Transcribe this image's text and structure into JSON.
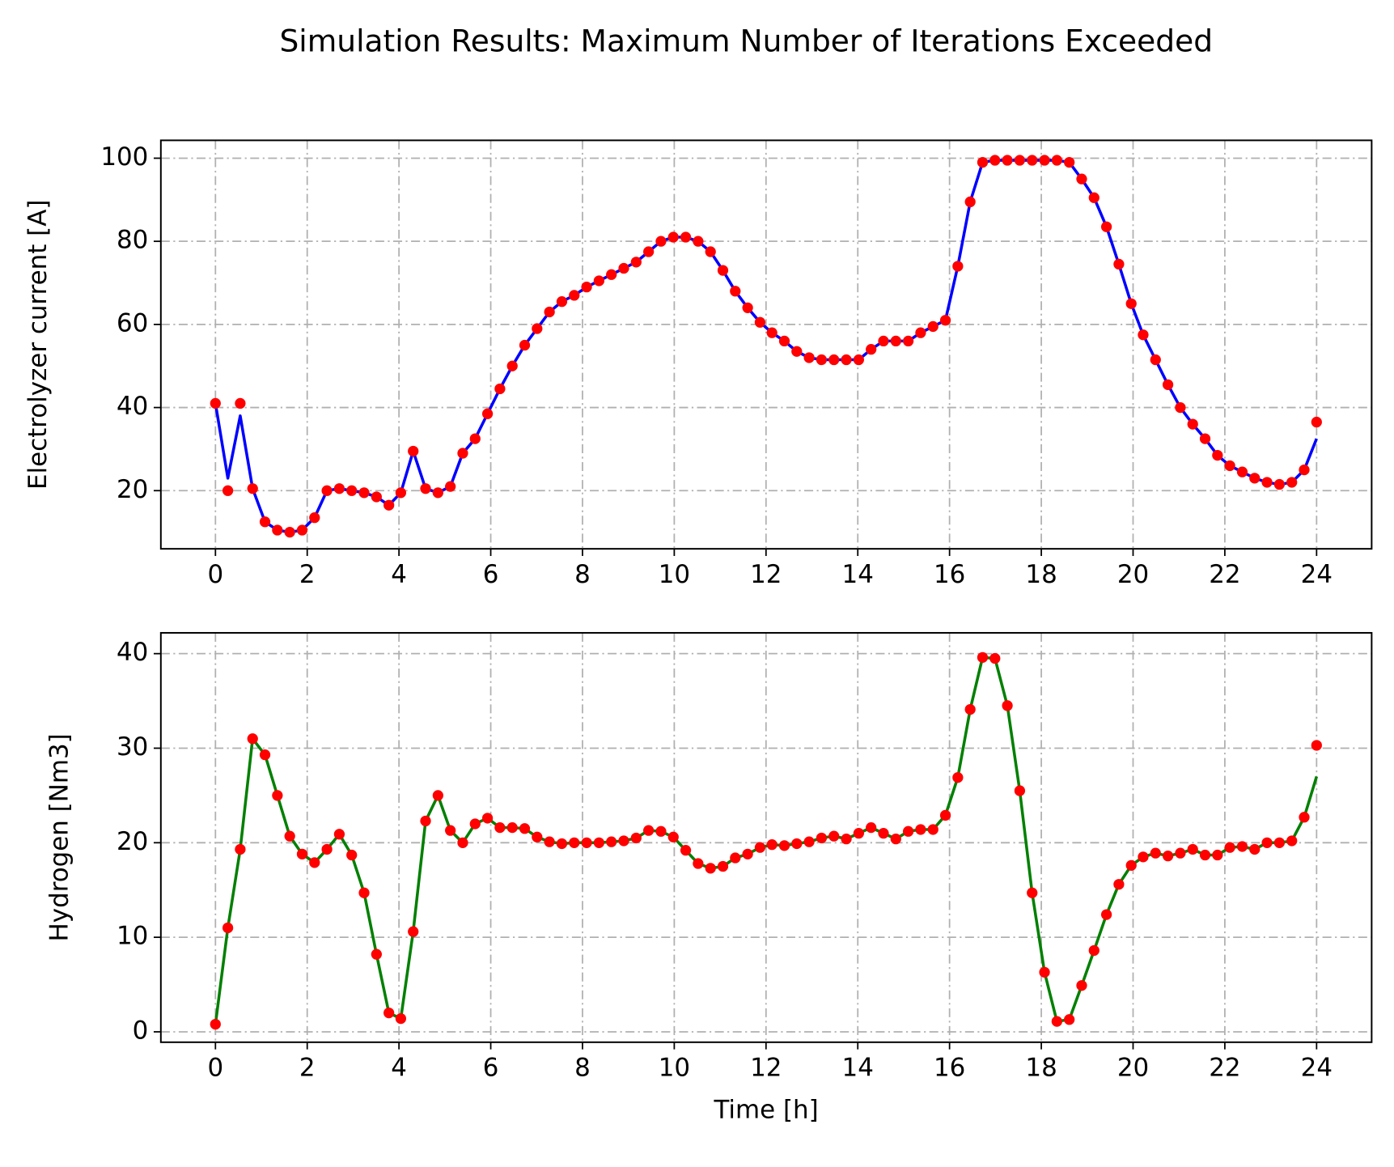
{
  "suptitle": "Simulation Results:  Maximum Number of Iterations Exceeded",
  "chart_data": [
    {
      "type": "line",
      "ylabel": "Electrolyzer current [A]",
      "xlim": [
        -1.19,
        25.2
      ],
      "ylim": [
        6.0,
        104.3
      ],
      "xticks": [
        0,
        2,
        4,
        6,
        8,
        10,
        12,
        14,
        16,
        18,
        20,
        22,
        24
      ],
      "yticks": [
        20,
        40,
        60,
        80,
        100
      ],
      "grid": true,
      "x": [
        0,
        0.27,
        0.54,
        0.81,
        1.08,
        1.35,
        1.62,
        1.89,
        2.16,
        2.43,
        2.7,
        2.97,
        3.24,
        3.51,
        3.78,
        4.04,
        4.31,
        4.58,
        4.85,
        5.12,
        5.39,
        5.66,
        5.93,
        6.2,
        6.47,
        6.74,
        7.01,
        7.28,
        7.55,
        7.82,
        8.09,
        8.36,
        8.63,
        8.9,
        9.17,
        9.44,
        9.71,
        9.98,
        10.25,
        10.52,
        10.79,
        11.06,
        11.33,
        11.6,
        11.87,
        12.13,
        12.4,
        12.67,
        12.94,
        13.21,
        13.48,
        13.75,
        14.02,
        14.29,
        14.56,
        14.83,
        15.1,
        15.37,
        15.64,
        15.91,
        16.18,
        16.45,
        16.72,
        16.99,
        17.26,
        17.53,
        17.8,
        18.07,
        18.34,
        18.61,
        18.88,
        19.15,
        19.42,
        19.69,
        19.96,
        20.22,
        20.49,
        20.76,
        21.03,
        21.3,
        21.57,
        21.84,
        22.11,
        22.38,
        22.65,
        22.92,
        23.19,
        23.46,
        23.73,
        24
      ],
      "series": [
        {
          "style": "line",
          "color": "#0000ff",
          "values": [
            41,
            23,
            38,
            20.5,
            12.5,
            10.5,
            10,
            10.5,
            13.5,
            20,
            20.5,
            20,
            19.5,
            18.5,
            16.5,
            19.5,
            29.5,
            20.5,
            19.5,
            21,
            29,
            32.5,
            38.5,
            44.5,
            50,
            55,
            59,
            63,
            65.5,
            67,
            69,
            70.5,
            72,
            73.5,
            75,
            77.5,
            80,
            81,
            81,
            80,
            77.5,
            73,
            68,
            64,
            60.5,
            58,
            56,
            53.5,
            52,
            51.5,
            51.5,
            51.5,
            51.5,
            54,
            56,
            56,
            56,
            58,
            59.5,
            61,
            74,
            89.5,
            99,
            99.5,
            99.5,
            99.5,
            99.5,
            99.5,
            99.5,
            99,
            95,
            90.5,
            83.5,
            74.5,
            65,
            57.5,
            51.5,
            45.5,
            40,
            36,
            32.5,
            28.5,
            26,
            24.5,
            23,
            22,
            21.5,
            22,
            25,
            32.5
          ]
        },
        {
          "style": "markers",
          "color": "#ff0000",
          "values": [
            41,
            20,
            41,
            20.5,
            12.5,
            10.5,
            10,
            10.5,
            13.5,
            20,
            20.5,
            20,
            19.5,
            18.5,
            16.5,
            19.5,
            29.5,
            20.5,
            19.5,
            21,
            29,
            32.5,
            38.5,
            44.5,
            50,
            55,
            59,
            63,
            65.5,
            67,
            69,
            70.5,
            72,
            73.5,
            75,
            77.5,
            80,
            81,
            81,
            80,
            77.5,
            73,
            68,
            64,
            60.5,
            58,
            56,
            53.5,
            52,
            51.5,
            51.5,
            51.5,
            51.5,
            54,
            56,
            56,
            56,
            58,
            59.5,
            61,
            74,
            89.5,
            99,
            99.5,
            99.5,
            99.5,
            99.5,
            99.5,
            99.5,
            99,
            95,
            90.5,
            83.5,
            74.5,
            65,
            57.5,
            51.5,
            45.5,
            40,
            36,
            32.5,
            28.5,
            26,
            24.5,
            23,
            22,
            21.5,
            22,
            25,
            36.5
          ]
        }
      ]
    },
    {
      "type": "line",
      "ylabel": "Hydrogen [Nm3]",
      "xlabel": "Time [h]",
      "xlim": [
        -1.19,
        25.2
      ],
      "ylim": [
        -1.1,
        42.2
      ],
      "xticks": [
        0,
        2,
        4,
        6,
        8,
        10,
        12,
        14,
        16,
        18,
        20,
        22,
        24
      ],
      "yticks": [
        0,
        10,
        20,
        30,
        40
      ],
      "grid": true,
      "x": [
        0,
        0.27,
        0.54,
        0.81,
        1.08,
        1.35,
        1.62,
        1.89,
        2.16,
        2.43,
        2.7,
        2.97,
        3.24,
        3.51,
        3.78,
        4.04,
        4.31,
        4.58,
        4.85,
        5.12,
        5.39,
        5.66,
        5.93,
        6.2,
        6.47,
        6.74,
        7.01,
        7.28,
        7.55,
        7.82,
        8.09,
        8.36,
        8.63,
        8.9,
        9.17,
        9.44,
        9.71,
        9.98,
        10.25,
        10.52,
        10.79,
        11.06,
        11.33,
        11.6,
        11.87,
        12.13,
        12.4,
        12.67,
        12.94,
        13.21,
        13.48,
        13.75,
        14.02,
        14.29,
        14.56,
        14.83,
        15.1,
        15.37,
        15.64,
        15.91,
        16.18,
        16.45,
        16.72,
        16.99,
        17.26,
        17.53,
        17.8,
        18.07,
        18.34,
        18.61,
        18.88,
        19.15,
        19.42,
        19.69,
        19.96,
        20.22,
        20.49,
        20.76,
        21.03,
        21.3,
        21.57,
        21.84,
        22.11,
        22.38,
        22.65,
        22.92,
        23.19,
        23.46,
        23.73,
        24
      ],
      "series": [
        {
          "style": "line",
          "color": "#008000",
          "values": [
            0.8,
            11,
            19.3,
            31,
            29.3,
            25,
            20.7,
            18.8,
            17.9,
            19.3,
            20.9,
            18.7,
            14.7,
            8.2,
            2,
            1.4,
            10.6,
            22.3,
            25,
            21.3,
            20,
            22,
            22.6,
            21.6,
            21.6,
            21.5,
            20.6,
            20.1,
            19.9,
            20,
            20,
            20,
            20.1,
            20.2,
            20.5,
            21.3,
            21.2,
            20.6,
            19.2,
            17.8,
            17.3,
            17.5,
            18.4,
            18.8,
            19.5,
            19.8,
            19.7,
            19.9,
            20.1,
            20.5,
            20.7,
            20.4,
            21,
            21.6,
            21,
            20.4,
            21.2,
            21.4,
            21.4,
            22.9,
            26.9,
            34.1,
            39.6,
            39.5,
            34.5,
            25.5,
            14.7,
            6.3,
            1.1,
            1.3,
            4.9,
            8.6,
            12.4,
            15.6,
            17.6,
            18.5,
            18.9,
            18.6,
            18.9,
            19.3,
            18.7,
            18.7,
            19.5,
            19.6,
            19.3,
            20,
            20,
            20.2,
            22.7,
            27
          ]
        },
        {
          "style": "markers",
          "color": "#ff0000",
          "values": [
            0.8,
            11,
            19.3,
            31,
            29.3,
            25,
            20.7,
            18.8,
            17.9,
            19.3,
            20.9,
            18.7,
            14.7,
            8.2,
            2,
            1.4,
            10.6,
            22.3,
            25,
            21.3,
            20,
            22,
            22.6,
            21.6,
            21.6,
            21.5,
            20.6,
            20.1,
            19.9,
            20,
            20,
            20,
            20.1,
            20.2,
            20.5,
            21.3,
            21.2,
            20.6,
            19.2,
            17.8,
            17.3,
            17.5,
            18.4,
            18.8,
            19.5,
            19.8,
            19.7,
            19.9,
            20.1,
            20.5,
            20.7,
            20.4,
            21,
            21.6,
            21,
            20.4,
            21.2,
            21.4,
            21.4,
            22.9,
            26.9,
            34.1,
            39.6,
            39.5,
            34.5,
            25.5,
            14.7,
            6.3,
            1.1,
            1.3,
            4.9,
            8.6,
            12.4,
            15.6,
            17.6,
            18.5,
            18.9,
            18.6,
            18.9,
            19.3,
            18.7,
            18.7,
            19.5,
            19.6,
            19.3,
            20,
            20,
            20.2,
            22.7,
            30.3
          ]
        }
      ]
    }
  ]
}
